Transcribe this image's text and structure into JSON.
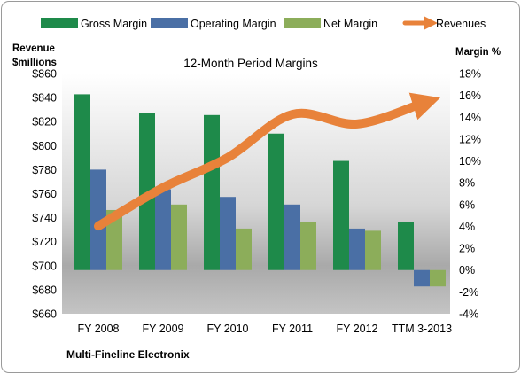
{
  "chart_data": {
    "type": "bar",
    "title": "12-Month Period Margins",
    "company": "Multi-Fineline Electronix",
    "categories": [
      "FY 2008",
      "FY 2009",
      "FY 2010",
      "FY 2011",
      "FY 2012",
      "TTM 3-2013"
    ],
    "left_axis": {
      "label_line1": "Revenue",
      "label_line2": "$millions",
      "range": [
        660,
        860
      ],
      "ticks": [
        660,
        680,
        700,
        720,
        740,
        760,
        780,
        800,
        820,
        840,
        860
      ],
      "tick_labels": [
        "$660",
        "$680",
        "$700",
        "$720",
        "$740",
        "$760",
        "$780",
        "$800",
        "$820",
        "$840",
        "$860"
      ]
    },
    "right_axis": {
      "label": "Margin %",
      "range": [
        -4,
        18
      ],
      "ticks": [
        -4,
        -2,
        0,
        2,
        4,
        6,
        8,
        10,
        12,
        14,
        16,
        18
      ],
      "tick_labels": [
        "-4%",
        "-2%",
        "0%",
        "2%",
        "4%",
        "6%",
        "8%",
        "10%",
        "12%",
        "14%",
        "16%",
        "18%"
      ]
    },
    "series": [
      {
        "name": "Gross Margin",
        "axis": "right",
        "color": "#1e8a4a",
        "values": [
          16.1,
          14.4,
          14.2,
          12.5,
          10.0,
          4.4
        ]
      },
      {
        "name": "Operating Margin",
        "axis": "right",
        "color": "#4a6fa5",
        "values": [
          9.2,
          7.4,
          6.7,
          6.0,
          3.8,
          -1.5
        ]
      },
      {
        "name": "Net Margin",
        "axis": "right",
        "color": "#8cad5a",
        "values": [
          5.5,
          6.0,
          3.8,
          4.4,
          3.6,
          -1.5
        ]
      },
      {
        "name": "Revenues",
        "axis": "left",
        "type": "line",
        "color": "#e8823a",
        "values": [
          733,
          765,
          790,
          826,
          818,
          835
        ]
      }
    ],
    "legend_position": "top",
    "grid": false
  }
}
